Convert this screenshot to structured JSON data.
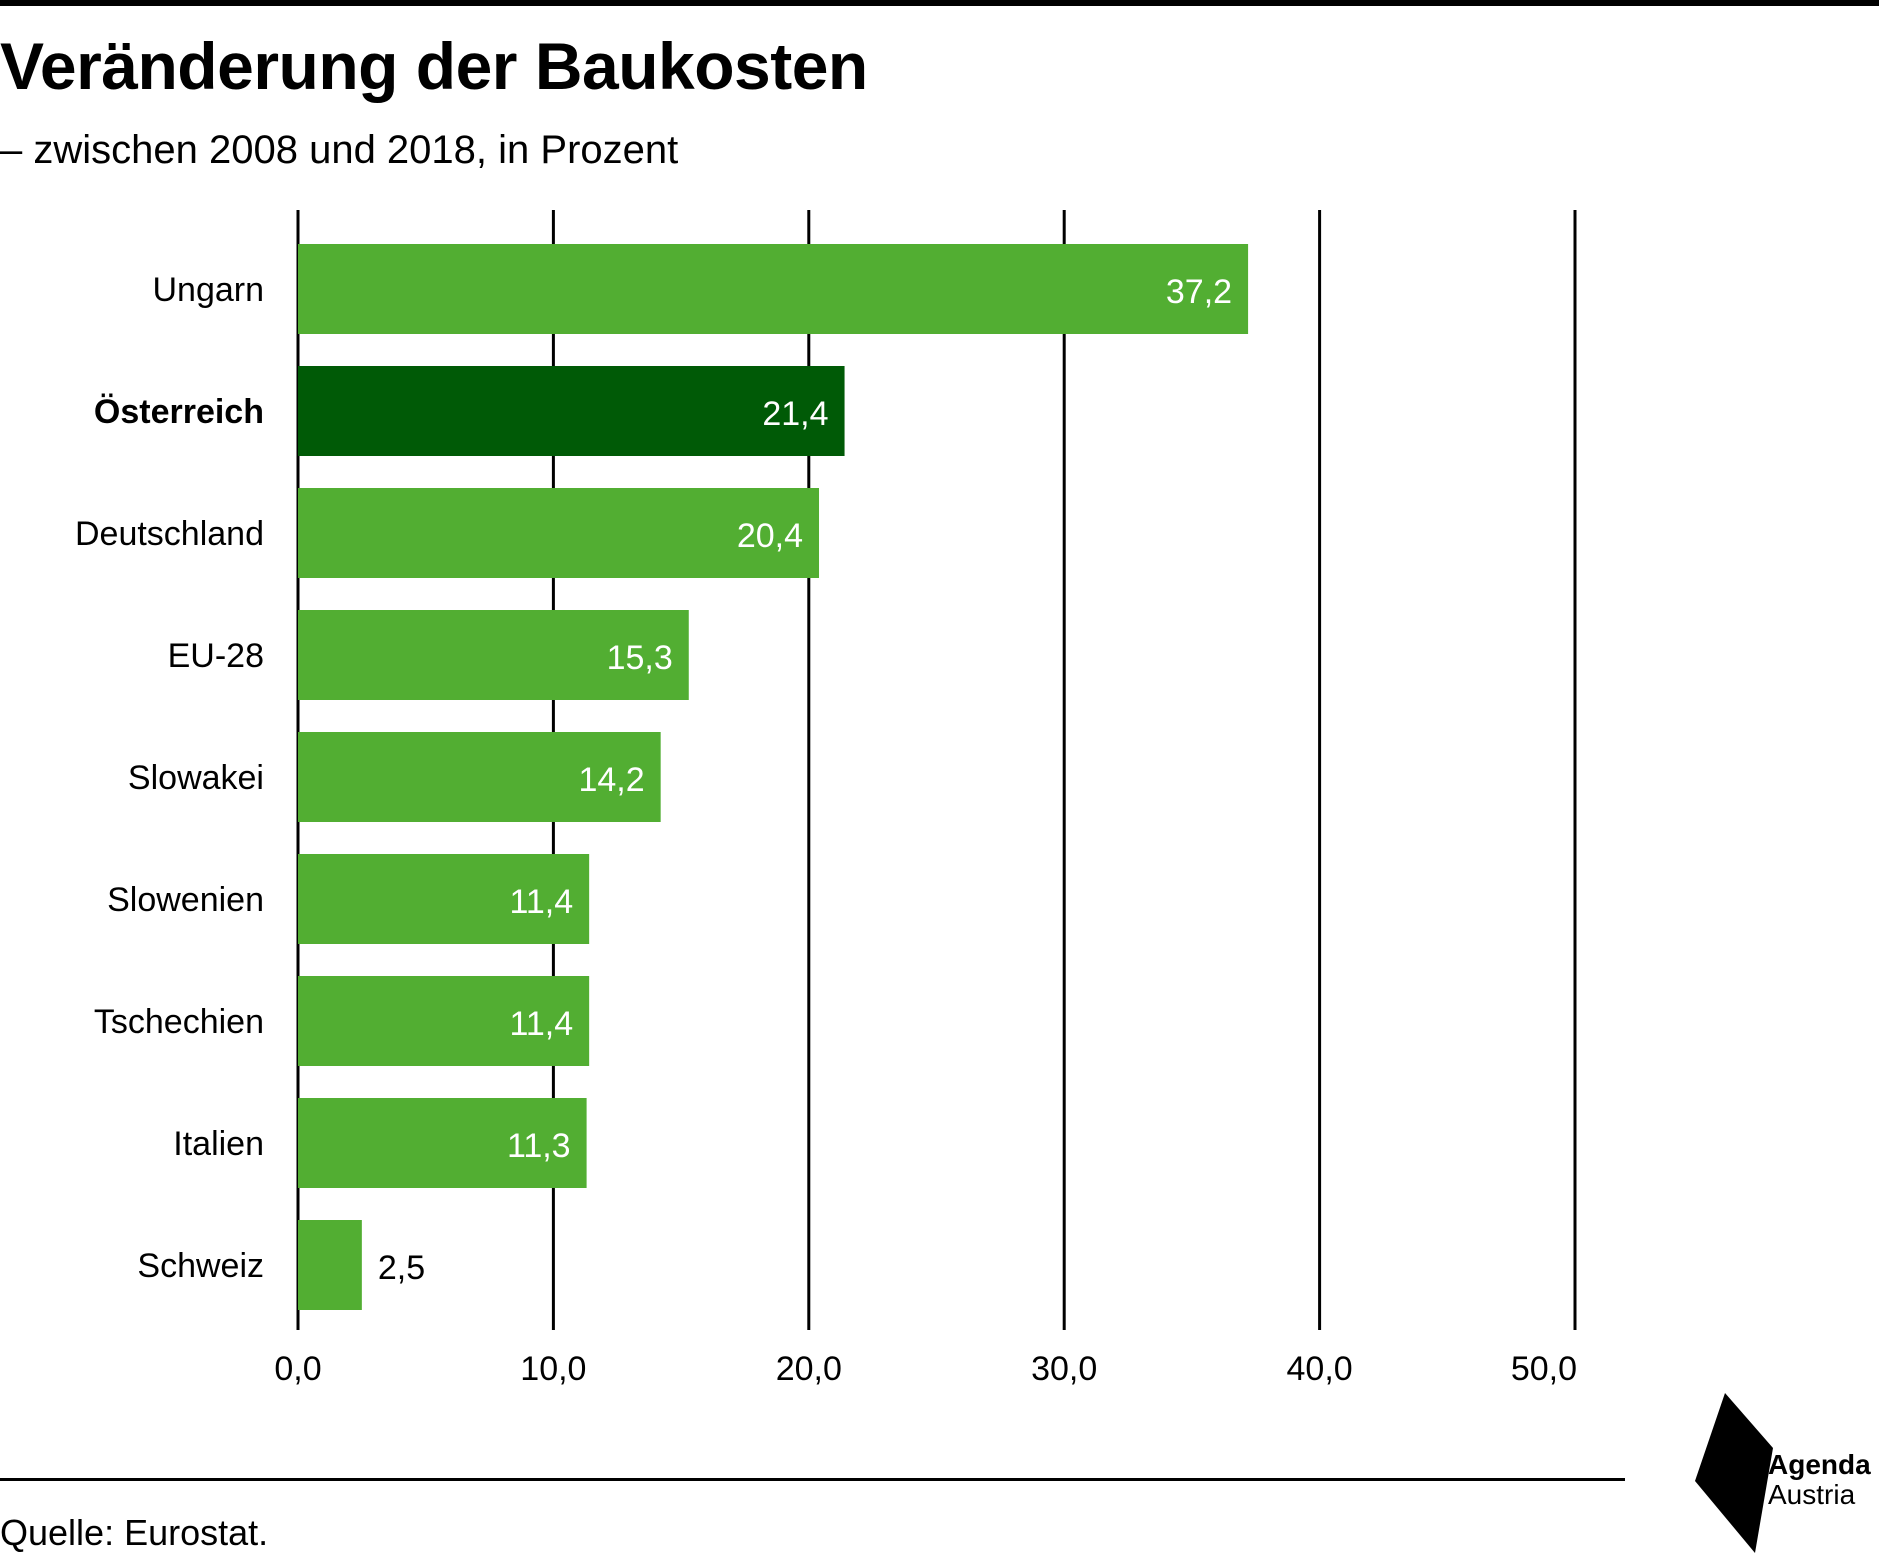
{
  "title": "Veränderung der Baukosten",
  "subtitle": "– zwischen 2008 und 2018, in Prozent",
  "source": "Quelle: Eurostat.",
  "logo": {
    "line1": "Agenda",
    "line2": "Austria"
  },
  "colors": {
    "bar": "#52ae32",
    "highlight": "#005a06",
    "grid": "#000000"
  },
  "chart_data": {
    "type": "bar",
    "orientation": "horizontal",
    "categories": [
      "Ungarn",
      "Österreich",
      "Deutschland",
      "EU-28",
      "Slowakei",
      "Slowenien",
      "Tschechien",
      "Italien",
      "Schweiz"
    ],
    "values": [
      37.2,
      21.4,
      20.4,
      15.3,
      14.2,
      11.4,
      11.4,
      11.3,
      2.5
    ],
    "value_labels": [
      "37,2",
      "21,4",
      "20,4",
      "15,3",
      "14,2",
      "11,4",
      "11,4",
      "11,3",
      "2,5"
    ],
    "highlight": "Österreich",
    "xlim": [
      0,
      50
    ],
    "xticks": [
      0,
      10,
      20,
      30,
      40,
      50
    ],
    "xtick_labels": [
      "0,0",
      "10,0",
      "20,0",
      "30,0",
      "40,0",
      "50,0"
    ],
    "grid": true
  }
}
